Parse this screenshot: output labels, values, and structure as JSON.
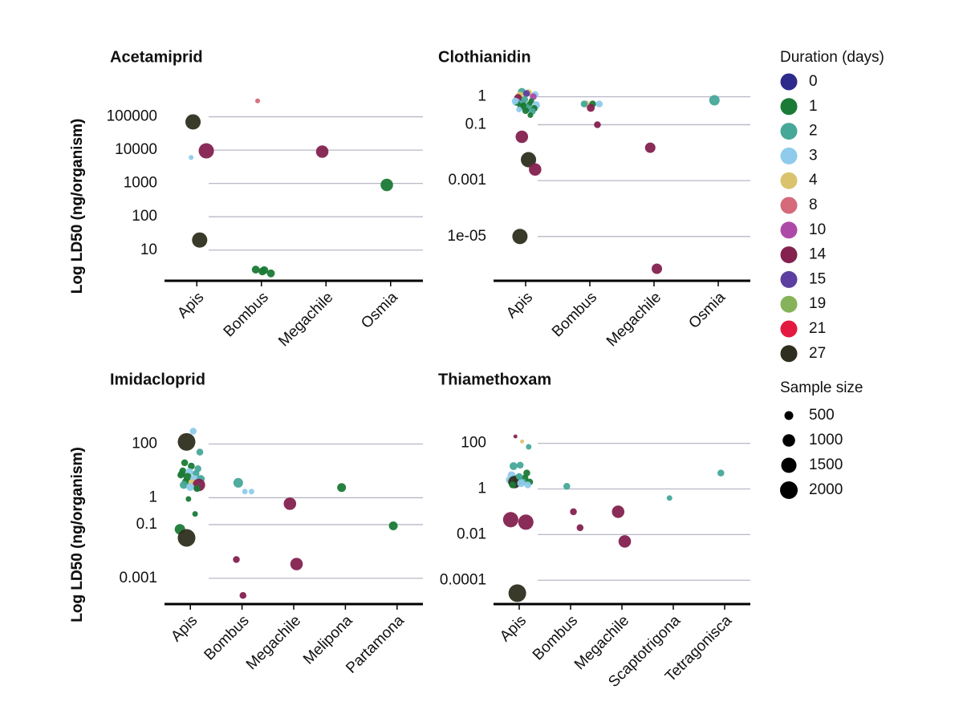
{
  "chart_data": [
    {
      "type": "scatter",
      "title": "Acetamiprid",
      "y_label": "Log LD50 (ng/organism)",
      "log_y": true,
      "grid": true,
      "categories": [
        "Apis",
        "Bombus",
        "Megachile",
        "Osmia"
      ],
      "ylim": [
        1.2,
        1000000
      ],
      "yticks": [
        10,
        100,
        1000,
        10000,
        100000
      ],
      "points": [
        {
          "category": "Apis",
          "value": 70000,
          "duration": 27,
          "size": 1500
        },
        {
          "category": "Apis",
          "value": 20,
          "duration": 27,
          "size": 1500
        },
        {
          "category": "Apis",
          "value": 9500,
          "duration": 14,
          "size": 1500
        },
        {
          "category": "Apis",
          "value": 6000,
          "duration": 3,
          "size": 150
        },
        {
          "category": "Bombus",
          "value": 300000,
          "duration": 8,
          "size": 150
        },
        {
          "category": "Bombus",
          "value": 2.5,
          "duration": 1,
          "size": 400
        },
        {
          "category": "Bombus",
          "value": 2.0,
          "duration": 1,
          "size": 400
        },
        {
          "category": "Bombus",
          "value": 2.6,
          "duration": 1,
          "size": 400
        },
        {
          "category": "Bombus",
          "value": 2.3,
          "duration": 1,
          "size": 400
        },
        {
          "category": "Megachile",
          "value": 9000,
          "duration": 14,
          "size": 1000
        },
        {
          "category": "Osmia",
          "value": 900,
          "duration": 1,
          "size": 1000
        }
      ]
    },
    {
      "type": "scatter",
      "title": "Clothianidin",
      "y_label": "Log LD50 (ng/organism)",
      "log_y": true,
      "grid": true,
      "categories": [
        "Apis",
        "Bombus",
        "Megachile",
        "Osmia"
      ],
      "ylim": [
        2.6e-07,
        3
      ],
      "yticks": [
        {
          "value": 1e-05,
          "label": "1e-05"
        },
        0.001,
        0.1,
        1
      ],
      "points": [
        {
          "category": "Apis",
          "value": 1.5,
          "duration": 2,
          "size": 400
        },
        {
          "category": "Apis",
          "value": 1.4,
          "duration": 4,
          "size": 300
        },
        {
          "category": "Apis",
          "value": 1.2,
          "duration": 3,
          "size": 300
        },
        {
          "category": "Apis",
          "value": 1.1,
          "duration": 4,
          "size": 400
        },
        {
          "category": "Apis",
          "value": 1.3,
          "duration": 15,
          "size": 300
        },
        {
          "category": "Apis",
          "value": 1.0,
          "duration": 10,
          "size": 300
        },
        {
          "category": "Apis",
          "value": 0.9,
          "duration": 14,
          "size": 400
        },
        {
          "category": "Apis",
          "value": 0.8,
          "duration": 2,
          "size": 300
        },
        {
          "category": "Apis",
          "value": 0.7,
          "duration": 1,
          "size": 200
        },
        {
          "category": "Apis",
          "value": 0.65,
          "duration": 3,
          "size": 400
        },
        {
          "category": "Apis",
          "value": 0.6,
          "duration": 2,
          "size": 300
        },
        {
          "category": "Apis",
          "value": 0.55,
          "duration": 1,
          "size": 200
        },
        {
          "category": "Apis",
          "value": 0.5,
          "duration": 3,
          "size": 400
        },
        {
          "category": "Apis",
          "value": 0.45,
          "duration": 1,
          "size": 300
        },
        {
          "category": "Apis",
          "value": 0.4,
          "duration": 2,
          "size": 300
        },
        {
          "category": "Apis",
          "value": 0.38,
          "duration": 1,
          "size": 300
        },
        {
          "category": "Apis",
          "value": 0.35,
          "duration": 3,
          "size": 200
        },
        {
          "category": "Apis",
          "value": 0.32,
          "duration": 1,
          "size": 300
        },
        {
          "category": "Apis",
          "value": 0.3,
          "duration": 2,
          "size": 300
        },
        {
          "category": "Apis",
          "value": 0.6,
          "duration": 1,
          "size": 200
        },
        {
          "category": "Apis",
          "value": 0.5,
          "duration": 1,
          "size": 200
        },
        {
          "category": "Apis",
          "value": 0.22,
          "duration": 1,
          "size": 200
        },
        {
          "category": "Apis",
          "value": 0.7,
          "duration": 3,
          "size": 300
        },
        {
          "category": "Apis",
          "value": 0.037,
          "duration": 14,
          "size": 1000
        },
        {
          "category": "Apis",
          "value": 0.0056,
          "duration": 27,
          "size": 1500
        },
        {
          "category": "Apis",
          "value": 0.0025,
          "duration": 14,
          "size": 1000
        },
        {
          "category": "Apis",
          "value": 1e-05,
          "duration": 27,
          "size": 1500
        },
        {
          "category": "Bombus",
          "value": 0.55,
          "duration": 4,
          "size": 300
        },
        {
          "category": "Bombus",
          "value": 0.55,
          "duration": 1,
          "size": 300
        },
        {
          "category": "Bombus",
          "value": 0.55,
          "duration": 3,
          "size": 300
        },
        {
          "category": "Bombus",
          "value": 0.55,
          "duration": 2,
          "size": 300
        },
        {
          "category": "Bombus",
          "value": 0.4,
          "duration": 14,
          "size": 400
        },
        {
          "category": "Bombus",
          "value": 0.1,
          "duration": 14,
          "size": 300
        },
        {
          "category": "Megachile",
          "value": 0.015,
          "duration": 14,
          "size": 700
        },
        {
          "category": "Megachile",
          "value": 7e-07,
          "duration": 14,
          "size": 700
        },
        {
          "category": "Osmia",
          "value": 0.75,
          "duration": 2,
          "size": 700
        }
      ]
    },
    {
      "type": "scatter",
      "title": "Imidacloprid",
      "y_label": "Log LD50 (ng/organism)",
      "log_y": true,
      "grid": true,
      "categories": [
        "Apis",
        "Bombus",
        "Megachile",
        "Melipona",
        "Partamona"
      ],
      "ylim": [
        0.00011,
        1000
      ],
      "yticks": [
        0.001,
        0.1,
        1,
        100
      ],
      "points": [
        {
          "category": "Apis",
          "value": 120,
          "duration": 27,
          "size": 2000
        },
        {
          "category": "Apis",
          "value": 300,
          "duration": 3,
          "size": 300
        },
        {
          "category": "Apis",
          "value": 50,
          "duration": 2,
          "size": 300
        },
        {
          "category": "Apis",
          "value": 20,
          "duration": 1,
          "size": 300
        },
        {
          "category": "Apis",
          "value": 15,
          "duration": 1,
          "size": 300
        },
        {
          "category": "Apis",
          "value": 12,
          "duration": 2,
          "size": 300
        },
        {
          "category": "Apis",
          "value": 10,
          "duration": 1,
          "size": 300
        },
        {
          "category": "Apis",
          "value": 9,
          "duration": 3,
          "size": 400
        },
        {
          "category": "Apis",
          "value": 8,
          "duration": 2,
          "size": 300
        },
        {
          "category": "Apis",
          "value": 7,
          "duration": 1,
          "size": 300
        },
        {
          "category": "Apis",
          "value": 6,
          "duration": 1,
          "size": 400
        },
        {
          "category": "Apis",
          "value": 5,
          "duration": 3,
          "size": 400
        },
        {
          "category": "Apis",
          "value": 5,
          "duration": 2,
          "size": 400
        },
        {
          "category": "Apis",
          "value": 4,
          "duration": 1,
          "size": 300
        },
        {
          "category": "Apis",
          "value": 3.5,
          "duration": 4,
          "size": 400
        },
        {
          "category": "Apis",
          "value": 3,
          "duration": 14,
          "size": 1000
        },
        {
          "category": "Apis",
          "value": 3,
          "duration": 2,
          "size": 400
        },
        {
          "category": "Apis",
          "value": 2.5,
          "duration": 3,
          "size": 400
        },
        {
          "category": "Apis",
          "value": 2.2,
          "duration": 1,
          "size": 300
        },
        {
          "category": "Apis",
          "value": 8,
          "duration": 1,
          "size": 300
        },
        {
          "category": "Apis",
          "value": 0.9,
          "duration": 1,
          "size": 200
        },
        {
          "category": "Apis",
          "value": 0.25,
          "duration": 1,
          "size": 200
        },
        {
          "category": "Apis",
          "value": 0.067,
          "duration": 1,
          "size": 700
        },
        {
          "category": "Apis",
          "value": 0.032,
          "duration": 27,
          "size": 2000
        },
        {
          "category": "Bombus",
          "value": 3.6,
          "duration": 2,
          "size": 600
        },
        {
          "category": "Bombus",
          "value": 1.7,
          "duration": 3,
          "size": 200
        },
        {
          "category": "Bombus",
          "value": 1.7,
          "duration": 3,
          "size": 200
        },
        {
          "category": "Bombus",
          "value": 0.005,
          "duration": 14,
          "size": 300
        },
        {
          "category": "Bombus",
          "value": 0.00023,
          "duration": 14,
          "size": 300
        },
        {
          "category": "Megachile",
          "value": 0.6,
          "duration": 14,
          "size": 1000
        },
        {
          "category": "Megachile",
          "value": 0.0034,
          "duration": 14,
          "size": 1000
        },
        {
          "category": "Melipona",
          "value": 2.4,
          "duration": 1,
          "size": 500
        },
        {
          "category": "Partamona",
          "value": 0.09,
          "duration": 1,
          "size": 500
        }
      ]
    },
    {
      "type": "scatter",
      "title": "Thiamethoxam",
      "y_label": "Log LD50 (ng/organism)",
      "log_y": true,
      "grid": true,
      "categories": [
        "Apis",
        "Bombus",
        "Megachile",
        "Scaptotrigona",
        "Tetragonisca"
      ],
      "ylim": [
        9e-06,
        1400
      ],
      "yticks": [
        0.0001,
        0.01,
        1,
        100
      ],
      "points": [
        {
          "category": "Apis",
          "value": 200,
          "duration": 14,
          "size": 100
        },
        {
          "category": "Apis",
          "value": 120,
          "duration": 4,
          "size": 100
        },
        {
          "category": "Apis",
          "value": 70,
          "duration": 2,
          "size": 200
        },
        {
          "category": "Apis",
          "value": 10,
          "duration": 2,
          "size": 400
        },
        {
          "category": "Apis",
          "value": 11,
          "duration": 2,
          "size": 300
        },
        {
          "category": "Apis",
          "value": 5,
          "duration": 1,
          "size": 300
        },
        {
          "category": "Apis",
          "value": 4,
          "duration": 3,
          "size": 400
        },
        {
          "category": "Apis",
          "value": 3,
          "duration": 2,
          "size": 400
        },
        {
          "category": "Apis",
          "value": 3,
          "duration": 1,
          "size": 300
        },
        {
          "category": "Apis",
          "value": 2.5,
          "duration": 3,
          "size": 400
        },
        {
          "category": "Apis",
          "value": 2.5,
          "duration": 1,
          "size": 300
        },
        {
          "category": "Apis",
          "value": 2,
          "duration": 2,
          "size": 300
        },
        {
          "category": "Apis",
          "value": 2,
          "duration": 1,
          "size": 300
        },
        {
          "category": "Apis",
          "value": 2,
          "duration": 27,
          "size": 1000
        },
        {
          "category": "Apis",
          "value": 1.8,
          "duration": 3,
          "size": 400
        },
        {
          "category": "Apis",
          "value": 1.5,
          "duration": 3,
          "size": 300
        },
        {
          "category": "Apis",
          "value": 1.5,
          "duration": 1,
          "size": 300
        },
        {
          "category": "Apis",
          "value": 3.5,
          "duration": 2,
          "size": 300
        },
        {
          "category": "Apis",
          "value": 0.035,
          "duration": 14,
          "size": 1500
        },
        {
          "category": "Apis",
          "value": 0.045,
          "duration": 14,
          "size": 1500
        },
        {
          "category": "Apis",
          "value": 2.7e-05,
          "duration": 27,
          "size": 2000
        },
        {
          "category": "Bombus",
          "value": 1.3,
          "duration": 2,
          "size": 300
        },
        {
          "category": "Bombus",
          "value": 0.1,
          "duration": 14,
          "size": 300
        },
        {
          "category": "Bombus",
          "value": 0.02,
          "duration": 14,
          "size": 300
        },
        {
          "category": "Megachile",
          "value": 0.1,
          "duration": 14,
          "size": 1000
        },
        {
          "category": "Megachile",
          "value": 0.005,
          "duration": 14,
          "size": 1000
        },
        {
          "category": "Scaptotrigona",
          "value": 0.4,
          "duration": 2,
          "size": 200
        },
        {
          "category": "Tetragonisca",
          "value": 5,
          "duration": 2,
          "size": 300
        }
      ]
    }
  ],
  "legend": {
    "title": "Duration (days)",
    "items": [
      {
        "name": "0",
        "color": "#2e2a8c"
      },
      {
        "name": "1",
        "color": "#1a7a36"
      },
      {
        "name": "2",
        "color": "#46a899"
      },
      {
        "name": "3",
        "color": "#8fcbeb"
      },
      {
        "name": "4",
        "color": "#d9c46d"
      },
      {
        "name": "8",
        "color": "#d46a7a"
      },
      {
        "name": "10",
        "color": "#ad4aa8"
      },
      {
        "name": "14",
        "color": "#84214f"
      },
      {
        "name": "15",
        "color": "#5c3fa0"
      },
      {
        "name": "19",
        "color": "#86b25a"
      },
      {
        "name": "21",
        "color": "#e3193f"
      },
      {
        "name": "27",
        "color": "#2f2f1f"
      }
    ]
  },
  "size_legend": {
    "title": "Sample size",
    "values": [
      500,
      1000,
      1500,
      2000
    ]
  }
}
